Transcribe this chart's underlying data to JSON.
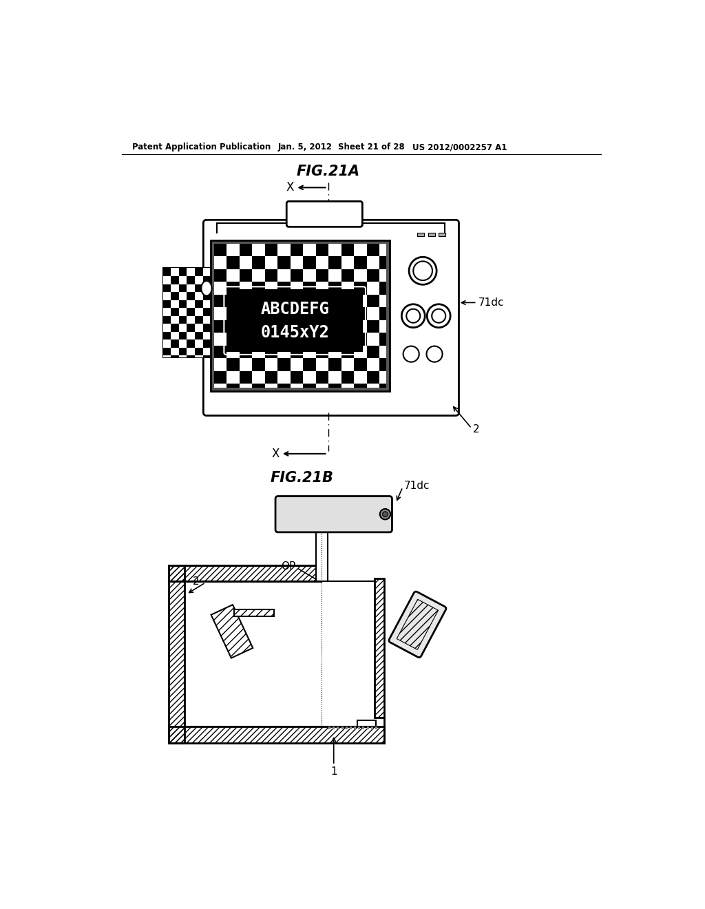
{
  "bg_color": "#ffffff",
  "header_text": "Patent Application Publication",
  "header_date": "Jan. 5, 2012",
  "header_sheet": "Sheet 21 of 28",
  "header_patent": "US 2012/0002257 A1",
  "fig_title_a": "FIG.21A",
  "fig_title_b": "FIG.21B",
  "label_71dc_a": "71dc",
  "label_2_a": "2",
  "label_x_top": "X",
  "label_x_bot": "X",
  "label_71dc_b": "71dc",
  "label_2_b": "2",
  "label_op": "OP",
  "label_1": "1"
}
